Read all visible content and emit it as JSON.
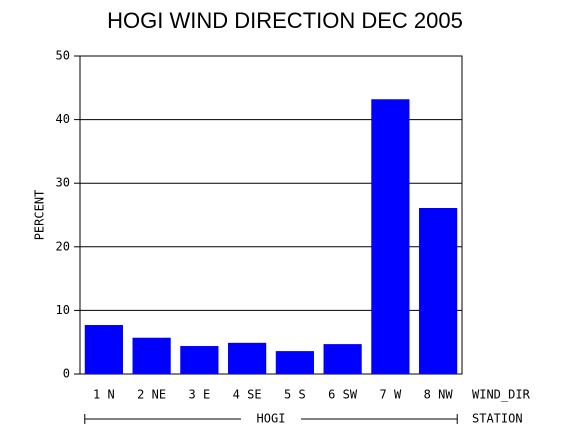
{
  "chart_data": {
    "type": "bar",
    "title": "HOGI WIND DIRECTION DEC 2005",
    "y_label": "PERCENT",
    "x_label": "WIND_DIR",
    "group_label": "HOGI",
    "group_axis_label": "STATION",
    "categories": [
      "1 N",
      "2 NE",
      "3 E",
      "4 SE",
      "5 S",
      "6 SW",
      "7 W",
      "8 NW"
    ],
    "values": [
      7.7,
      5.7,
      4.4,
      4.9,
      3.6,
      4.7,
      43.2,
      26.1
    ],
    "color": "#0000ff",
    "ylim": [
      0,
      50
    ],
    "yticks": [
      0,
      10,
      20,
      30,
      40,
      50
    ],
    "grid": true
  }
}
